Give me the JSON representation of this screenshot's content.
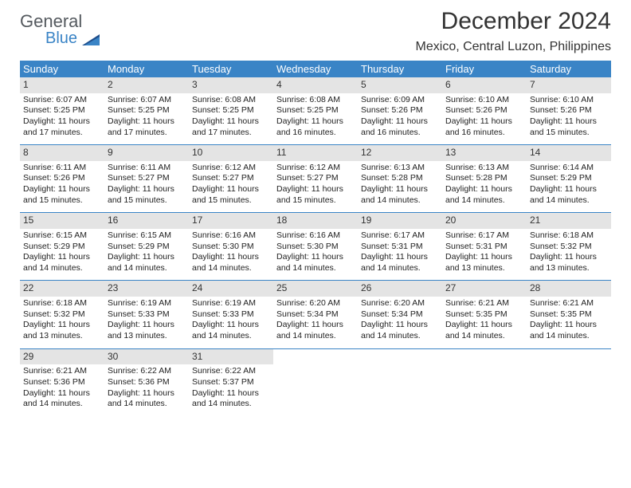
{
  "logo": {
    "top": "General",
    "bottom": "Blue"
  },
  "title": "December 2024",
  "subtitle": "Mexico, Central Luzon, Philippines",
  "colors": {
    "header_bg": "#3a84c6",
    "header_fg": "#ffffff",
    "daynum_bg": "#e4e4e4",
    "rule": "#3a84c6",
    "logo_gray": "#555a5f",
    "logo_blue": "#3a84c6"
  },
  "weekdays": [
    "Sunday",
    "Monday",
    "Tuesday",
    "Wednesday",
    "Thursday",
    "Friday",
    "Saturday"
  ],
  "weeks": [
    [
      {
        "n": "1",
        "sr": "Sunrise: 6:07 AM",
        "ss": "Sunset: 5:25 PM",
        "dl": "Daylight: 11 hours and 17 minutes."
      },
      {
        "n": "2",
        "sr": "Sunrise: 6:07 AM",
        "ss": "Sunset: 5:25 PM",
        "dl": "Daylight: 11 hours and 17 minutes."
      },
      {
        "n": "3",
        "sr": "Sunrise: 6:08 AM",
        "ss": "Sunset: 5:25 PM",
        "dl": "Daylight: 11 hours and 17 minutes."
      },
      {
        "n": "4",
        "sr": "Sunrise: 6:08 AM",
        "ss": "Sunset: 5:25 PM",
        "dl": "Daylight: 11 hours and 16 minutes."
      },
      {
        "n": "5",
        "sr": "Sunrise: 6:09 AM",
        "ss": "Sunset: 5:26 PM",
        "dl": "Daylight: 11 hours and 16 minutes."
      },
      {
        "n": "6",
        "sr": "Sunrise: 6:10 AM",
        "ss": "Sunset: 5:26 PM",
        "dl": "Daylight: 11 hours and 16 minutes."
      },
      {
        "n": "7",
        "sr": "Sunrise: 6:10 AM",
        "ss": "Sunset: 5:26 PM",
        "dl": "Daylight: 11 hours and 15 minutes."
      }
    ],
    [
      {
        "n": "8",
        "sr": "Sunrise: 6:11 AM",
        "ss": "Sunset: 5:26 PM",
        "dl": "Daylight: 11 hours and 15 minutes."
      },
      {
        "n": "9",
        "sr": "Sunrise: 6:11 AM",
        "ss": "Sunset: 5:27 PM",
        "dl": "Daylight: 11 hours and 15 minutes."
      },
      {
        "n": "10",
        "sr": "Sunrise: 6:12 AM",
        "ss": "Sunset: 5:27 PM",
        "dl": "Daylight: 11 hours and 15 minutes."
      },
      {
        "n": "11",
        "sr": "Sunrise: 6:12 AM",
        "ss": "Sunset: 5:27 PM",
        "dl": "Daylight: 11 hours and 15 minutes."
      },
      {
        "n": "12",
        "sr": "Sunrise: 6:13 AM",
        "ss": "Sunset: 5:28 PM",
        "dl": "Daylight: 11 hours and 14 minutes."
      },
      {
        "n": "13",
        "sr": "Sunrise: 6:13 AM",
        "ss": "Sunset: 5:28 PM",
        "dl": "Daylight: 11 hours and 14 minutes."
      },
      {
        "n": "14",
        "sr": "Sunrise: 6:14 AM",
        "ss": "Sunset: 5:29 PM",
        "dl": "Daylight: 11 hours and 14 minutes."
      }
    ],
    [
      {
        "n": "15",
        "sr": "Sunrise: 6:15 AM",
        "ss": "Sunset: 5:29 PM",
        "dl": "Daylight: 11 hours and 14 minutes."
      },
      {
        "n": "16",
        "sr": "Sunrise: 6:15 AM",
        "ss": "Sunset: 5:29 PM",
        "dl": "Daylight: 11 hours and 14 minutes."
      },
      {
        "n": "17",
        "sr": "Sunrise: 6:16 AM",
        "ss": "Sunset: 5:30 PM",
        "dl": "Daylight: 11 hours and 14 minutes."
      },
      {
        "n": "18",
        "sr": "Sunrise: 6:16 AM",
        "ss": "Sunset: 5:30 PM",
        "dl": "Daylight: 11 hours and 14 minutes."
      },
      {
        "n": "19",
        "sr": "Sunrise: 6:17 AM",
        "ss": "Sunset: 5:31 PM",
        "dl": "Daylight: 11 hours and 14 minutes."
      },
      {
        "n": "20",
        "sr": "Sunrise: 6:17 AM",
        "ss": "Sunset: 5:31 PM",
        "dl": "Daylight: 11 hours and 13 minutes."
      },
      {
        "n": "21",
        "sr": "Sunrise: 6:18 AM",
        "ss": "Sunset: 5:32 PM",
        "dl": "Daylight: 11 hours and 13 minutes."
      }
    ],
    [
      {
        "n": "22",
        "sr": "Sunrise: 6:18 AM",
        "ss": "Sunset: 5:32 PM",
        "dl": "Daylight: 11 hours and 13 minutes."
      },
      {
        "n": "23",
        "sr": "Sunrise: 6:19 AM",
        "ss": "Sunset: 5:33 PM",
        "dl": "Daylight: 11 hours and 13 minutes."
      },
      {
        "n": "24",
        "sr": "Sunrise: 6:19 AM",
        "ss": "Sunset: 5:33 PM",
        "dl": "Daylight: 11 hours and 14 minutes."
      },
      {
        "n": "25",
        "sr": "Sunrise: 6:20 AM",
        "ss": "Sunset: 5:34 PM",
        "dl": "Daylight: 11 hours and 14 minutes."
      },
      {
        "n": "26",
        "sr": "Sunrise: 6:20 AM",
        "ss": "Sunset: 5:34 PM",
        "dl": "Daylight: 11 hours and 14 minutes."
      },
      {
        "n": "27",
        "sr": "Sunrise: 6:21 AM",
        "ss": "Sunset: 5:35 PM",
        "dl": "Daylight: 11 hours and 14 minutes."
      },
      {
        "n": "28",
        "sr": "Sunrise: 6:21 AM",
        "ss": "Sunset: 5:35 PM",
        "dl": "Daylight: 11 hours and 14 minutes."
      }
    ],
    [
      {
        "n": "29",
        "sr": "Sunrise: 6:21 AM",
        "ss": "Sunset: 5:36 PM",
        "dl": "Daylight: 11 hours and 14 minutes."
      },
      {
        "n": "30",
        "sr": "Sunrise: 6:22 AM",
        "ss": "Sunset: 5:36 PM",
        "dl": "Daylight: 11 hours and 14 minutes."
      },
      {
        "n": "31",
        "sr": "Sunrise: 6:22 AM",
        "ss": "Sunset: 5:37 PM",
        "dl": "Daylight: 11 hours and 14 minutes."
      },
      null,
      null,
      null,
      null
    ]
  ]
}
